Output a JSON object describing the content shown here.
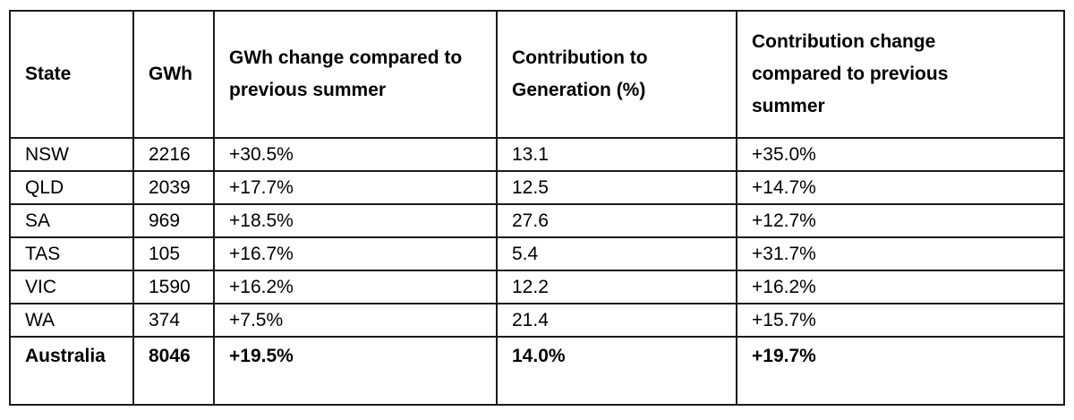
{
  "table": {
    "headers": [
      "State",
      "GWh",
      "GWh change compared to previous summer",
      "Contribution to Generation (%)",
      "Contribution change compared to previous summer"
    ],
    "rows": [
      [
        "NSW",
        "2216",
        "+30.5%",
        "13.1",
        "+35.0%"
      ],
      [
        "QLD",
        "2039",
        "+17.7%",
        "12.5",
        "+14.7%"
      ],
      [
        "SA",
        "969",
        "+18.5%",
        "27.6",
        "+12.7%"
      ],
      [
        "TAS",
        "105",
        "+16.7%",
        "5.4",
        "+31.7%"
      ],
      [
        "VIC",
        "1590",
        "+16.2%",
        "12.2",
        "+16.2%"
      ],
      [
        "WA",
        "374",
        "+7.5%",
        "21.4",
        "+15.7%"
      ]
    ],
    "total": [
      "Australia",
      "8046",
      "+19.5%",
      "14.0%",
      "+19.7%"
    ]
  }
}
